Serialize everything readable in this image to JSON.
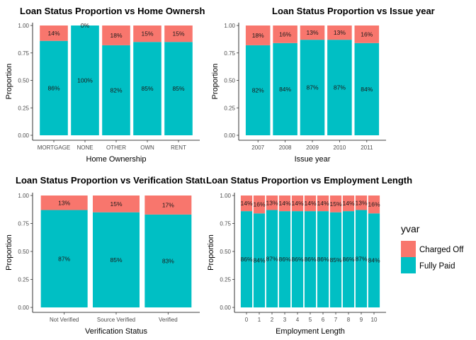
{
  "colors": {
    "charged_off": "#F8766D",
    "fully_paid": "#00BFC4"
  },
  "legend": {
    "title": "yvar",
    "entries": [
      {
        "label": "Charged Off",
        "color": "#F8766D"
      },
      {
        "label": "Fully Paid",
        "color": "#00BFC4"
      }
    ]
  },
  "chart_data": [
    {
      "type": "bar",
      "stacked": true,
      "title": "Loan Status Proportion vs Home Ownership",
      "xlabel": "Home Ownership",
      "ylabel": "Proportion",
      "ylim": [
        0,
        1
      ],
      "yticks": [
        "0.00",
        "0.25",
        "0.50",
        "0.75",
        "1.00"
      ],
      "categories": [
        "MORTGAGE",
        "NONE",
        "OTHER",
        "OWN",
        "RENT"
      ],
      "series": [
        {
          "name": "Charged Off",
          "values": [
            0.14,
            0.0,
            0.18,
            0.15,
            0.15
          ],
          "labels": [
            "14%",
            "0%",
            "18%",
            "15%",
            "15%"
          ]
        },
        {
          "name": "Fully Paid",
          "values": [
            0.86,
            1.0,
            0.82,
            0.85,
            0.85
          ],
          "labels": [
            "86%",
            "100%",
            "82%",
            "85%",
            "85%"
          ]
        }
      ]
    },
    {
      "type": "bar",
      "stacked": true,
      "title": "Loan Status Proportion vs Issue year",
      "xlabel": "Issue year",
      "ylabel": "Proportion",
      "ylim": [
        0,
        1
      ],
      "yticks": [
        "0.00",
        "0.25",
        "0.50",
        "0.75",
        "1.00"
      ],
      "categories": [
        "2007",
        "2008",
        "2009",
        "2010",
        "2011"
      ],
      "series": [
        {
          "name": "Charged Off",
          "values": [
            0.18,
            0.16,
            0.13,
            0.13,
            0.16
          ],
          "labels": [
            "18%",
            "16%",
            "13%",
            "13%",
            "16%"
          ]
        },
        {
          "name": "Fully Paid",
          "values": [
            0.82,
            0.84,
            0.87,
            0.87,
            0.84
          ],
          "labels": [
            "82%",
            "84%",
            "87%",
            "87%",
            "84%"
          ]
        }
      ]
    },
    {
      "type": "bar",
      "stacked": true,
      "title": "Loan Status Proportion vs Verification Status",
      "xlabel": "Verification Status",
      "ylabel": "Proportion",
      "ylim": [
        0,
        1
      ],
      "yticks": [
        "0.00",
        "0.25",
        "0.50",
        "0.75",
        "1.00"
      ],
      "categories": [
        "Not Verified",
        "Source Verified",
        "Verified"
      ],
      "series": [
        {
          "name": "Charged Off",
          "values": [
            0.13,
            0.15,
            0.17
          ],
          "labels": [
            "13%",
            "15%",
            "17%"
          ]
        },
        {
          "name": "Fully Paid",
          "values": [
            0.87,
            0.85,
            0.83
          ],
          "labels": [
            "87%",
            "85%",
            "83%"
          ]
        }
      ]
    },
    {
      "type": "bar",
      "stacked": true,
      "title": "Loan Status Proportion vs Employment Length",
      "xlabel": "Employment Length",
      "ylabel": "Proportion",
      "ylim": [
        0,
        1
      ],
      "yticks": [
        "0.00",
        "0.25",
        "0.50",
        "0.75",
        "1.00"
      ],
      "categories": [
        "0",
        "1",
        "2",
        "3",
        "4",
        "5",
        "6",
        "7",
        "8",
        "9",
        "10"
      ],
      "series": [
        {
          "name": "Charged Off",
          "values": [
            0.14,
            0.16,
            0.13,
            0.14,
            0.14,
            0.14,
            0.14,
            0.15,
            0.14,
            0.13,
            0.16
          ],
          "labels": [
            "14%",
            "16%",
            "13%",
            "14%",
            "14%",
            "14%",
            "14%",
            "15%",
            "14%",
            "13%",
            "16%"
          ]
        },
        {
          "name": "Fully Paid",
          "values": [
            0.86,
            0.84,
            0.87,
            0.86,
            0.86,
            0.86,
            0.86,
            0.85,
            0.86,
            0.87,
            0.84
          ],
          "labels": [
            "86%",
            "84%",
            "87%",
            "86%",
            "86%",
            "86%",
            "86%",
            "85%",
            "86%",
            "87%",
            "84%"
          ]
        }
      ]
    }
  ]
}
